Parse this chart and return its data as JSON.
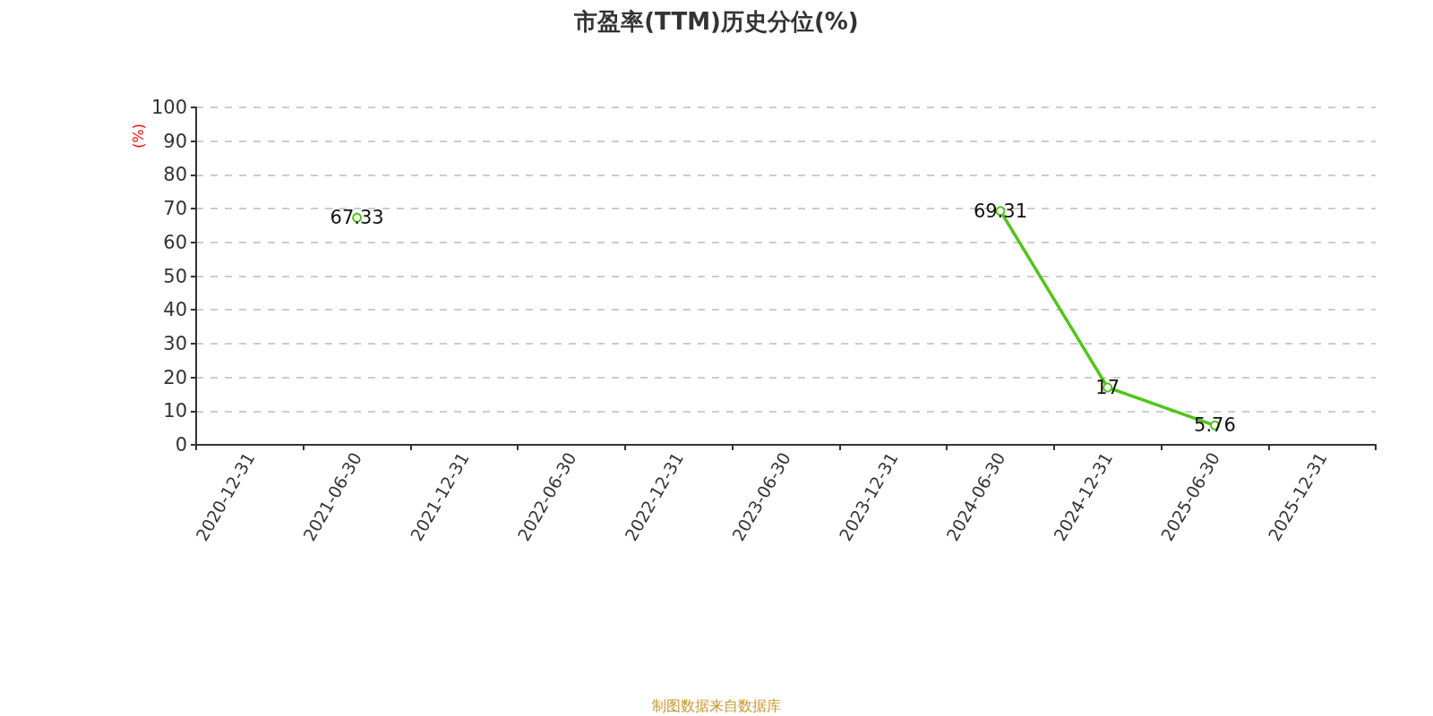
{
  "chart_data": {
    "type": "line",
    "title": "市盈率(TTM)历史分位(%)",
    "ylabel": "(%)",
    "annotations": [
      "制图数据来自数据库"
    ],
    "categories": [
      "2020-12-31",
      "2021-06-30",
      "2021-12-31",
      "2022-06-30",
      "2022-12-31",
      "2023-06-30",
      "2023-12-31",
      "2024-06-30",
      "2024-12-31",
      "2025-06-30",
      "2025-12-31"
    ],
    "series": [
      {
        "color": "#52c41a",
        "values": [
          null,
          67.33,
          null,
          null,
          null,
          null,
          null,
          69.31,
          17,
          5.76,
          null
        ]
      }
    ],
    "ylim": [
      0,
      100
    ],
    "yticks": [
      0,
      10,
      20,
      30,
      40,
      50,
      60,
      70,
      80,
      90,
      100
    ],
    "grid": "y",
    "marker": "circle",
    "line_style": "solid",
    "data_labels": true
  }
}
